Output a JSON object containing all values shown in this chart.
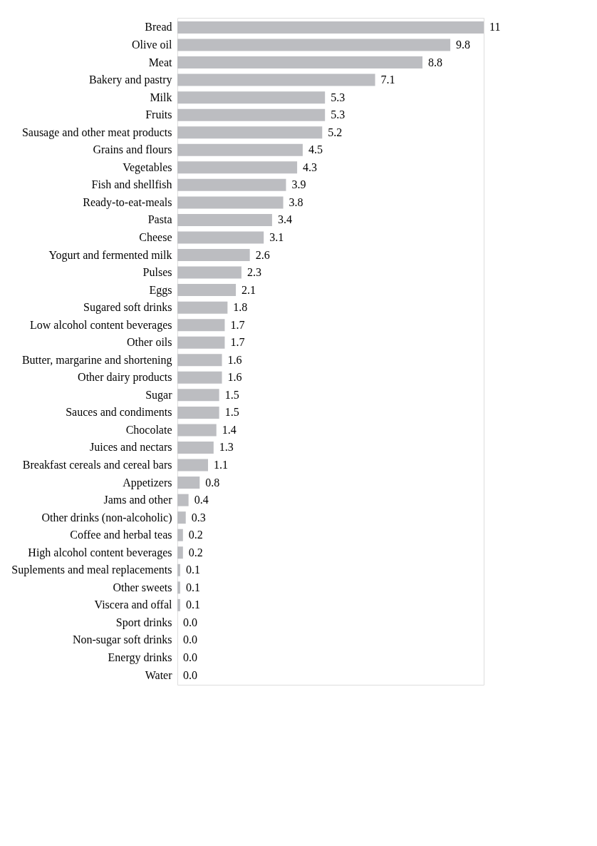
{
  "chart_data": {
    "type": "bar",
    "orientation": "horizontal",
    "color": "#bcbdc1",
    "categories": [
      "Bread",
      "Olive oil",
      "Meat",
      "Bakery and pastry",
      "Milk",
      "Fruits",
      "Sausage and other meat products",
      "Grains and flours",
      "Vegetables",
      "Fish and shellfish",
      "Ready-to-eat-meals",
      "Pasta",
      "Cheese",
      "Yogurt and fermented milk",
      "Pulses",
      "Eggs",
      "Sugared soft drinks",
      "Low alcohol content beverages",
      "Other oils",
      "Butter, margarine and shortening",
      "Other dairy products",
      "Sugar",
      "Sauces and condiments",
      "Chocolate",
      "Juices and nectars",
      "Breakfast cereals and cereal bars",
      "Appetizers",
      "Jams and other",
      "Other drinks (non-alcoholic)",
      "Coffee and herbal teas",
      "High alcohol content beverages",
      "Suplements and meal replacements",
      "Other sweets",
      "Viscera and offal",
      "Sport drinks",
      "Non-sugar soft drinks",
      "Energy drinks",
      "Water"
    ],
    "values": [
      11,
      9.8,
      8.8,
      7.1,
      5.3,
      5.3,
      5.2,
      4.5,
      4.3,
      3.9,
      3.8,
      3.4,
      3.1,
      2.6,
      2.3,
      2.1,
      1.8,
      1.7,
      1.7,
      1.6,
      1.6,
      1.5,
      1.5,
      1.4,
      1.3,
      1.1,
      0.8,
      0.4,
      0.3,
      0.2,
      0.2,
      0.1,
      0.1,
      0.1,
      0.0,
      0.0,
      0.0,
      0.0
    ],
    "value_labels": [
      "11",
      "9.8",
      "8.8",
      "7.1",
      "5.3",
      "5.3",
      "5.2",
      "4.5",
      "4.3",
      "3.9",
      "3.8",
      "3.4",
      "3.1",
      "2.6",
      "2.3",
      "2.1",
      "1.8",
      "1.7",
      "1.7",
      "1.6",
      "1.6",
      "1.5",
      "1.5",
      "1.4",
      "1.3",
      "1.1",
      "0.8",
      "0.4",
      "0.3",
      "0.2",
      "0.2",
      "0.1",
      "0.1",
      "0.1",
      "0.0",
      "0.0",
      "0.0",
      "0.0"
    ]
  }
}
